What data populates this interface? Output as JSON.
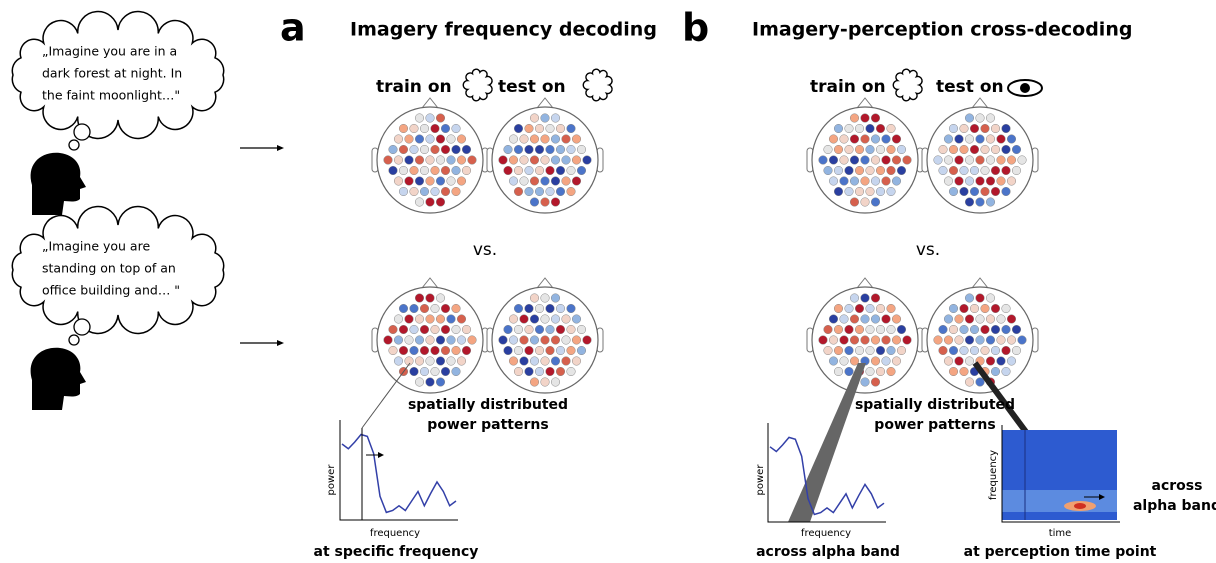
{
  "thoughts": [
    {
      "lines": [
        "„Imagine you are in a",
        "dark forest at night. In",
        "the faint moonlight…\""
      ]
    },
    {
      "lines": [
        "„Imagine you are",
        "standing on top of an",
        "office building and… \""
      ]
    }
  ],
  "panels": [
    {
      "label": "a",
      "title": "Imagery frequency decoding",
      "train": "train on",
      "test": "test on",
      "vs": "vs.",
      "caption": [
        "spatially distributed",
        "power patterns"
      ],
      "plots": [
        {
          "ylabel": "power",
          "xlabel": "frequency",
          "caption": "at specific frequency"
        }
      ]
    },
    {
      "label": "b",
      "title": "Imagery-perception cross-decoding",
      "train": "train on",
      "test": "test on",
      "vs": "vs.",
      "caption": [
        "spatially distributed",
        "power patterns"
      ],
      "plots": [
        {
          "ylabel": "power",
          "xlabel": "frequency",
          "caption": "across alpha band"
        },
        {
          "ylabel": "frequency",
          "xlabel": "time",
          "caption": "at perception time point",
          "annotation": [
            "across",
            "alpha band"
          ]
        }
      ]
    }
  ]
}
